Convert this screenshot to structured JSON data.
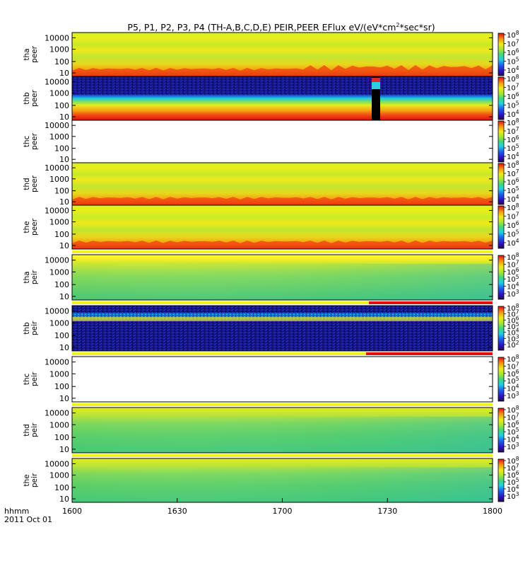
{
  "chart_data": {
    "type": "heatmap",
    "title": "P5, P1, P2, P3, P4 (TH-A,B,C,D,E) PEIR,PEER EFlux eV/(eV*cm^2*sec*sr)",
    "x_axis": {
      "range": [
        1600,
        1800
      ],
      "ticks": [
        "1600",
        "1630",
        "1700",
        "1730",
        "1800"
      ],
      "label_unit": "hhmm",
      "date": "2011 Oct 01"
    },
    "y_ticks": [
      "10000",
      "1000",
      "100",
      "10"
    ],
    "y_scale": "log",
    "colorbar_labels": {
      "peer": [
        "10^8",
        "10^7",
        "10^6",
        "10^5",
        "10^4"
      ],
      "peir": [
        "10^8",
        "10^7",
        "10^6",
        "10^5",
        "10^4",
        "10^3"
      ],
      "peir_thb": [
        "10^8",
        "10^7",
        "10^6",
        "10^5",
        "10^4",
        "10^3",
        "10^2"
      ]
    },
    "panels": [
      {
        "probe": "tha",
        "species": "peer",
        "label": "tha peer"
      },
      {
        "probe": "thb",
        "species": "peer",
        "label": "thb peer"
      },
      {
        "probe": "thc",
        "species": "peer",
        "label": "thc peer"
      },
      {
        "probe": "thd",
        "species": "peer",
        "label": "thd peer"
      },
      {
        "probe": "the",
        "species": "peer",
        "label": "the peer"
      },
      {
        "probe": "tha",
        "species": "peir",
        "label": "tha peir"
      },
      {
        "probe": "thb",
        "species": "peir",
        "label": "thb peir"
      },
      {
        "probe": "thc",
        "species": "peir",
        "label": "thc peir"
      },
      {
        "probe": "thd",
        "species": "peir",
        "label": "thd peir"
      },
      {
        "probe": "the",
        "species": "peir",
        "label": "the peir"
      }
    ]
  }
}
